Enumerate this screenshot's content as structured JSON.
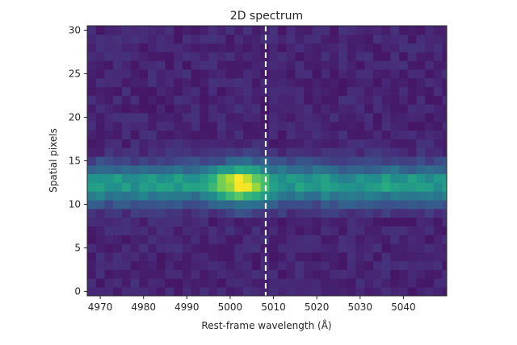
{
  "chart_data": {
    "type": "heatmap",
    "title": "2D spectrum",
    "xlabel": "Rest-frame wavelength (Å)",
    "ylabel": "Spatial pixels",
    "xlim": [
      4967,
      5050
    ],
    "ylim": [
      -0.5,
      30.5
    ],
    "x_ticks": [
      4970,
      4980,
      4990,
      5000,
      5010,
      5020,
      5030,
      5040
    ],
    "y_ticks": [
      0,
      5,
      10,
      15,
      20,
      25,
      30
    ],
    "wavelength_step": 2.0,
    "n_rows": 31,
    "colormap": "viridis",
    "grid": false,
    "trace": {
      "description_row_center": 12.5,
      "row_weights": {
        "9": 0.1,
        "10": 0.28,
        "11": 0.55,
        "12": 0.8,
        "13": 0.75,
        "14": 0.45,
        "15": 0.2,
        "16": 0.05
      },
      "continuum_level": 0.55,
      "line_center": 5002,
      "line_peak": 0.95,
      "line_width": 5.5
    },
    "background_level": 0.06,
    "reference_line": {
      "x": 5008.2,
      "style": "dashed",
      "color": "#ffffff"
    }
  }
}
